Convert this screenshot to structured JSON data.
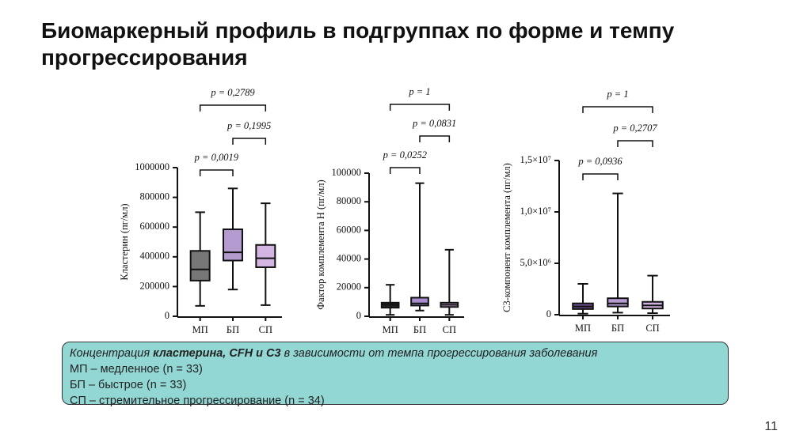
{
  "title": "Биомаркерный профиль в подгруппах по форме и темпу прогрессирования",
  "chart_data": [
    {
      "type": "box",
      "ylabel": "Кластерин (пг/мл)",
      "categories": [
        "МП",
        "БП",
        "СП"
      ],
      "boxes": [
        {
          "min": 70000,
          "q1": 240000,
          "median": 315000,
          "q3": 440000,
          "max": 700000,
          "color": "#777777"
        },
        {
          "min": 180000,
          "q1": 375000,
          "median": 430000,
          "q3": 585000,
          "max": 860000,
          "color": "#b39bd0"
        },
        {
          "min": 75000,
          "q1": 330000,
          "median": 390000,
          "q3": 480000,
          "max": 760000,
          "color": "#d4b5e2"
        }
      ],
      "ylim": [
        0,
        1000000
      ],
      "yticks": [
        0,
        200000,
        400000,
        600000,
        800000,
        1000000
      ],
      "annotations": [
        "p = 0,0019",
        "p = 0,1995",
        "p = 0,2789"
      ]
    },
    {
      "type": "box",
      "ylabel": "Фактор комплемента Н (пг/мл)",
      "categories": [
        "МП",
        "БП",
        "СП"
      ],
      "boxes": [
        {
          "min": 1000,
          "q1": 6000,
          "median": 8000,
          "q3": 9500,
          "max": 22000,
          "color": "#222222"
        },
        {
          "min": 4000,
          "q1": 7500,
          "median": 9000,
          "q3": 13000,
          "max": 93000,
          "color": "#a98dcc"
        },
        {
          "min": 1000,
          "q1": 6500,
          "median": 8000,
          "q3": 9500,
          "max": 46500,
          "color": "#c9a5da"
        }
      ],
      "ylim": [
        0,
        100000
      ],
      "yticks": [
        0,
        20000,
        40000,
        60000,
        80000,
        100000
      ],
      "annotations": [
        "p = 0,0252",
        "p = 0,0831",
        "p = 1"
      ]
    },
    {
      "type": "box",
      "ylabel": "С3-компонент комплемента (пг/мл)",
      "categories": [
        "МП",
        "БП",
        "СП"
      ],
      "boxes": [
        {
          "min": 100000,
          "q1": 550000,
          "median": 800000,
          "q3": 1100000,
          "max": 3000000,
          "color": "#6e4f92"
        },
        {
          "min": 200000,
          "q1": 800000,
          "median": 1100000,
          "q3": 1600000,
          "max": 11800000,
          "color": "#b49bd2"
        },
        {
          "min": 150000,
          "q1": 600000,
          "median": 900000,
          "q3": 1250000,
          "max": 3800000,
          "color": "#cfb0e0"
        }
      ],
      "ylim": [
        0,
        15000000
      ],
      "yticks": [
        0,
        {
          "value": 5000000,
          "label": "5,0×10⁶"
        },
        {
          "value": 10000000,
          "label": "1,0×10⁷"
        },
        {
          "value": 15000000,
          "label": "1,5×10⁷"
        }
      ],
      "annotations": [
        "p = 0,0936",
        "p = 0,2707",
        "p = 1"
      ]
    }
  ],
  "caption": {
    "heading": [
      "Концентрация ",
      "кластерина, CFH и C3",
      " в зависимости от темпа прогрессирования заболевания"
    ],
    "lines": [
      "МП – медленное (n = 33)",
      "БП – быстрое (n = 33)",
      "СП – стремительное прогрессирование (n = 34)"
    ]
  },
  "page_number": "11"
}
